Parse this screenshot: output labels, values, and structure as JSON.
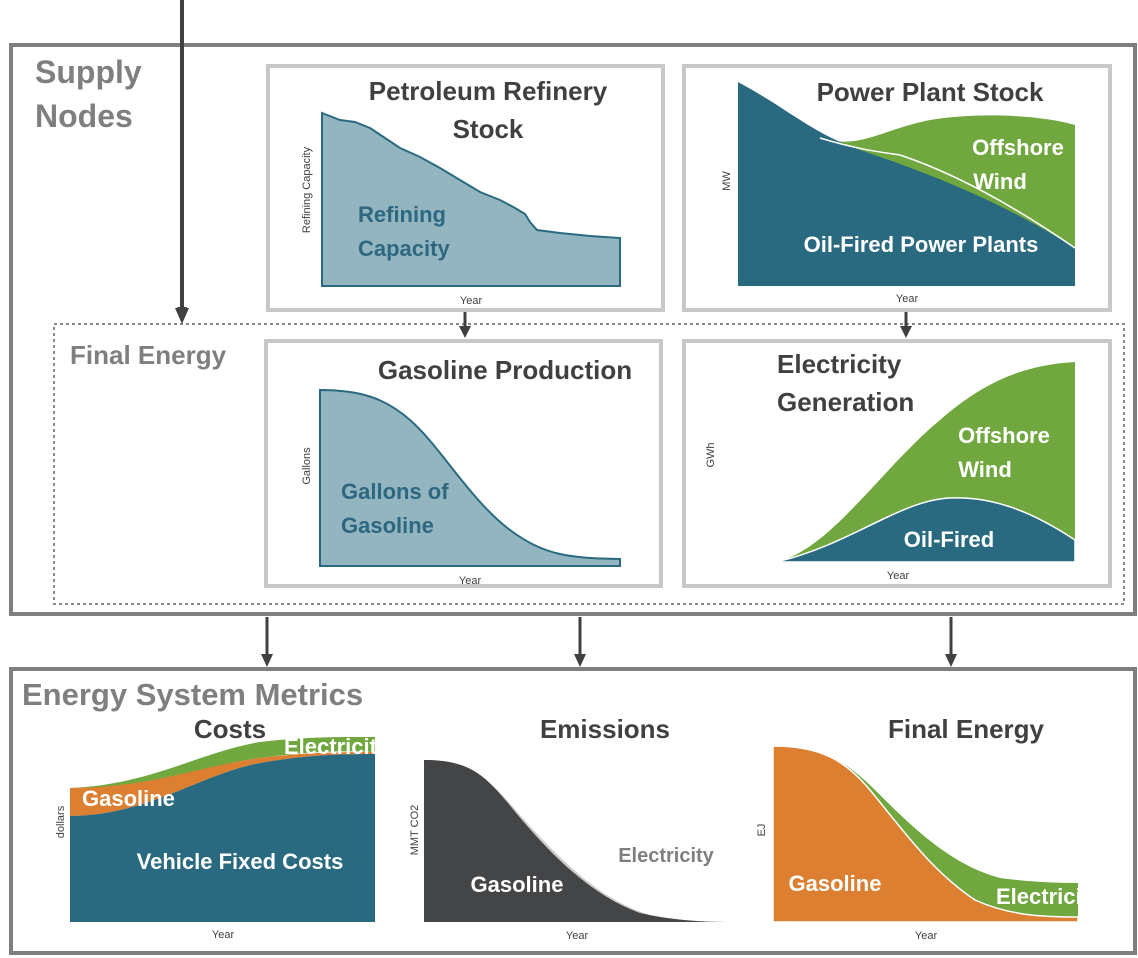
{
  "sections": {
    "supply_nodes": {
      "line1": "Supply",
      "line2": "Nodes"
    },
    "final_energy": "Final Energy",
    "metrics": "Energy System Metrics"
  },
  "panels": {
    "refinery": {
      "title1": "Petroleum Refinery",
      "title2": "Stock",
      "ylabel": "Refining Capacity",
      "xlabel": "Year",
      "series1": "Refining",
      "series2": "Capacity"
    },
    "power_plant": {
      "title": "Power Plant Stock",
      "ylabel": "MW",
      "xlabel": "Year",
      "wind1": "Offshore",
      "wind2": "Wind",
      "oil": "Oil-Fired Power Plants"
    },
    "gasoline": {
      "title": "Gasoline Production",
      "ylabel": "Gallons",
      "xlabel": "Year",
      "series1": "Gallons of",
      "series2": "Gasoline"
    },
    "electricity": {
      "title1": "Electricity",
      "title2": "Generation",
      "ylabel": "GWh",
      "xlabel": "Year",
      "wind1": "Offshore",
      "wind2": "Wind",
      "oil": "Oil-Fired"
    },
    "costs": {
      "title": "Costs",
      "ylabel": "dollars",
      "xlabel": "Year",
      "electricity": "Electricity",
      "gasoline": "Gasoline",
      "vehicle": "Vehicle Fixed Costs"
    },
    "emissions": {
      "title": "Emissions",
      "ylabel": "MMT CO2",
      "xlabel": "Year",
      "electricity": "Electricity",
      "gasoline": "Gasoline"
    },
    "final_energy_metric": {
      "title": "Final Energy",
      "ylabel": "EJ",
      "xlabel": "Year",
      "gasoline": "Gasoline",
      "electricity": "Electricit"
    }
  },
  "colors": {
    "teal": "#2a6a80",
    "light_teal": "#93b5c0",
    "green": "#70a83f",
    "orange": "#dd7f30",
    "charcoal": "#444547",
    "light_grey": "#c9c9c9",
    "frame": "#7f7f7f",
    "panel_frame": "#c8c8c8"
  }
}
